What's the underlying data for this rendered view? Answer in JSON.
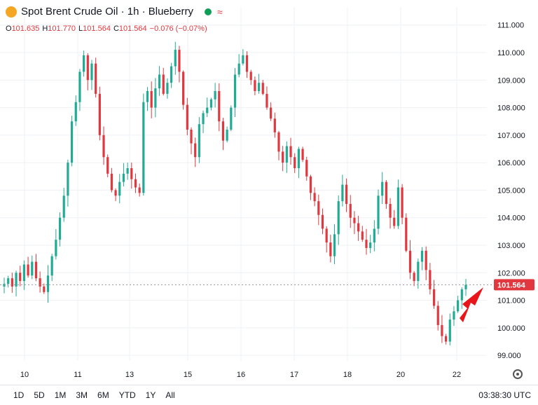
{
  "header": {
    "title": "Spot Brent Crude Oil · 1h · Blueberry",
    "wave_symbol": "≈"
  },
  "ohlc": {
    "o_key": "O",
    "o_val": "101.635",
    "h_key": "H",
    "h_val": "101.770",
    "l_key": "L",
    "l_val": "101.564",
    "c_key": "C",
    "c_val": "101.564",
    "change": "−0.076 (−0.07%)"
  },
  "price_tag": "101.564",
  "toolbar": {
    "ranges": [
      "1D",
      "5D",
      "1M",
      "3M",
      "6M",
      "YTD",
      "1Y",
      "All"
    ],
    "clock": "03:38:30 UTC"
  },
  "colors": {
    "up": "#22ab94",
    "down": "#e0383e",
    "accent_arrow": "#e8161b"
  },
  "chart_data": {
    "type": "candlestick",
    "y_ticks": [
      "99.000",
      "100.000",
      "101.000",
      "102.000",
      "103.000",
      "104.000",
      "105.000",
      "106.000",
      "107.000",
      "108.000",
      "109.000",
      "110.000",
      "111.000"
    ],
    "x_ticks": [
      "10",
      "11",
      "13",
      "15",
      "16",
      "17",
      "18",
      "20",
      "22"
    ],
    "ylim": [
      98.8,
      111.4
    ],
    "last_price": 101.564,
    "close_path": [
      101.6,
      101.8,
      101.5,
      102.0,
      101.7,
      102.3,
      101.9,
      102.4,
      101.8,
      101.5,
      101.3,
      101.9,
      102.6,
      103.2,
      104.0,
      104.8,
      106.0,
      107.5,
      108.2,
      109.3,
      109.9,
      109.0,
      109.6,
      108.5,
      107.0,
      106.2,
      105.6,
      105.0,
      104.8,
      105.3,
      105.6,
      105.8,
      105.4,
      105.1,
      104.9,
      108.2,
      108.6,
      108.0,
      108.7,
      109.2,
      108.5,
      108.9,
      109.5,
      110.1,
      109.3,
      108.1,
      107.2,
      106.7,
      106.2,
      107.4,
      107.8,
      108.0,
      108.3,
      108.6,
      107.5,
      106.8,
      107.2,
      108.0,
      109.2,
      109.6,
      109.9,
      109.3,
      109.0,
      108.6,
      108.9,
      108.5,
      108.0,
      107.6,
      107.1,
      106.4,
      106.0,
      106.6,
      106.2,
      105.8,
      106.5,
      106.1,
      105.5,
      104.9,
      104.6,
      104.1,
      103.6,
      103.1,
      102.6,
      103.4,
      104.6,
      105.2,
      104.5,
      104.0,
      103.8,
      103.5,
      103.2,
      102.9,
      103.1,
      103.6,
      104.8,
      105.3,
      104.5,
      104.0,
      103.7,
      105.1,
      104.0,
      102.8,
      102.0,
      101.7,
      102.4,
      102.8,
      102.1,
      101.4,
      100.8,
      100.1,
      99.7,
      99.5,
      100.3,
      100.6,
      101.0,
      101.4,
      101.564
    ]
  }
}
